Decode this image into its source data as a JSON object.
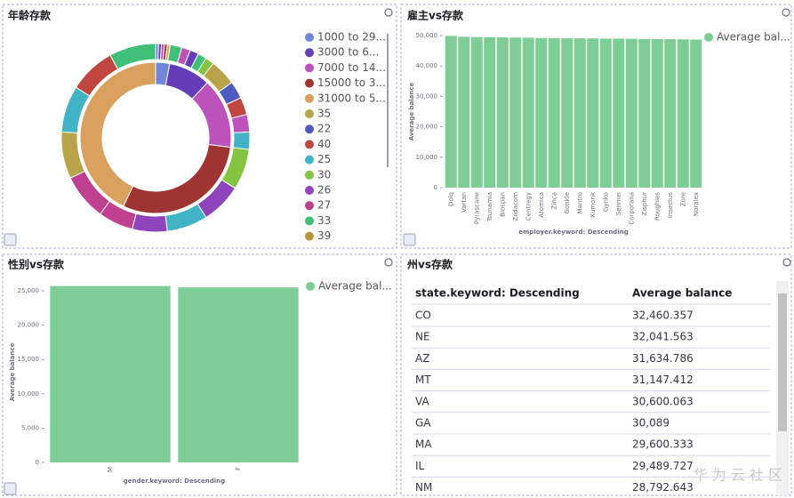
{
  "chart_data": [
    {
      "type": "pie",
      "title": "年龄存款",
      "inner": {
        "categories": [
          "1000 to 29...",
          "3000 to 6...",
          "7000 to 14...",
          "15000 to 3...",
          "31000 to 5..."
        ],
        "values": [
          3,
          9,
          15,
          30,
          43
        ],
        "colors": [
          "#6f87d8",
          "#663db8",
          "#bc52bc",
          "#9e3533",
          "#daa05d"
        ]
      },
      "outer": {
        "values": [
          0.5,
          0.5,
          0.5,
          0.5,
          0.5,
          2,
          1.5,
          1.5,
          1.5,
          1.5,
          4.5,
          3,
          3,
          3,
          3,
          7,
          7,
          7,
          6,
          6,
          8,
          8,
          8,
          8,
          8
        ],
        "colors": [
          "#6f87d8",
          "#663db8",
          "#bc52bc",
          "#9e3533",
          "#daa05d",
          "#3fbf77",
          "#bc52bc",
          "#663db8",
          "#3fbf77",
          "#84c440",
          "#b9a348",
          "#4b5bbf",
          "#c0473f",
          "#bc52bc",
          "#40b4c4",
          "#84c440",
          "#8e44bb",
          "#40b4c4",
          "#8e44bb",
          "#c04090",
          "#c04090",
          "#b9a348",
          "#40b4c4",
          "#c0473f",
          "#3fbf77"
        ]
      },
      "age_legend": {
        "categories": [
          "35",
          "22",
          "40",
          "25",
          "30",
          "26",
          "27",
          "33",
          "39"
        ],
        "colors": [
          "#b9a348",
          "#4b5bbf",
          "#c0473f",
          "#40b4c4",
          "#84c440",
          "#8e44bb",
          "#c04090",
          "#3fbf77",
          "#b8963c"
        ]
      }
    },
    {
      "type": "bar",
      "title": "雇主vs存款",
      "x_label": "employer.keyword: Descending",
      "y_label": "Average balance",
      "categories": [
        "Dolq",
        "Vartan",
        "Pyrascane",
        "Tsunamia",
        "Biospan",
        "Ziidacom",
        "Centregy",
        "Atomica",
        "Zinca",
        "Gonkle",
        "Mantro",
        "Xumonk",
        "Gynko",
        "Senmei",
        "Corporana",
        "Zisphur",
        "Roughies",
        "Insectus",
        "Zore",
        "Noralex"
      ],
      "series": [
        {
          "name": "Average bal...",
          "color": "#7fcd96",
          "values": [
            49900,
            49600,
            49500,
            49450,
            49400,
            49350,
            49300,
            49200,
            49150,
            49100,
            49100,
            49050,
            49000,
            49000,
            48950,
            48900,
            48850,
            48800,
            48750,
            48700
          ]
        }
      ],
      "ylim": [
        0,
        50000
      ],
      "yticks": [
        0,
        {
          "value": 10000,
          "label": "10,000"
        },
        {
          "value": 20000,
          "label": "20,000"
        },
        {
          "value": 30000,
          "label": "30,000"
        },
        {
          "value": 40000,
          "label": "40,000"
        },
        {
          "value": 50000,
          "label": "50,000"
        }
      ]
    },
    {
      "type": "bar",
      "title": "性别vs存款",
      "x_label": "gender.keyword: Descending",
      "y_label": "Average balance",
      "categories": [
        "M",
        "F"
      ],
      "series": [
        {
          "name": "Average bal...",
          "color": "#7fcd96",
          "values": [
            25700,
            25500
          ]
        }
      ],
      "ylim": [
        0,
        26300
      ],
      "yticks": [
        0,
        {
          "value": 5000,
          "label": "5,000"
        },
        {
          "value": 10000,
          "label": "10,000"
        },
        {
          "value": 15000,
          "label": "15,000"
        },
        {
          "value": 20000,
          "label": "20,000"
        },
        {
          "value": 25000,
          "label": "25,000"
        }
      ]
    }
  ],
  "table": {
    "title": "州vs存款",
    "header": [
      "state.keyword: Descending",
      "Average balance"
    ],
    "rows": [
      [
        "CO",
        "32,460.357"
      ],
      [
        "NE",
        "32,041.563"
      ],
      [
        "AZ",
        "31,634.786"
      ],
      [
        "MT",
        "31,147.412"
      ],
      [
        "VA",
        "30,600.063"
      ],
      [
        "GA",
        "30,089"
      ],
      [
        "MA",
        "29,600.333"
      ],
      [
        "IL",
        "29,489.727"
      ],
      [
        "NM",
        "28,792.643"
      ]
    ]
  },
  "watermark": "华 为 云 社 区"
}
